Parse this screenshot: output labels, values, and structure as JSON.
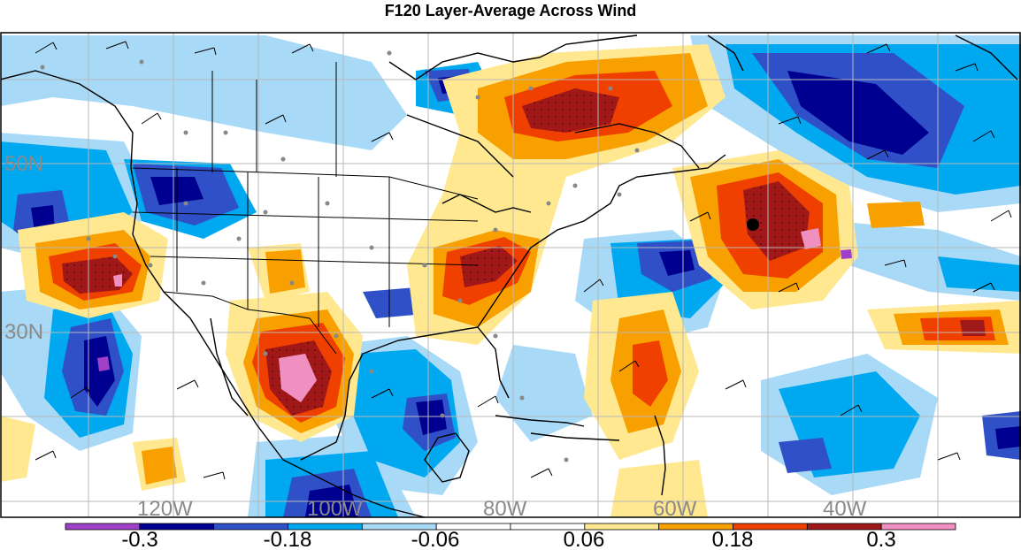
{
  "title": "F120 Layer-Average Across Wind",
  "lat_labels": [
    "50N",
    "30N"
  ],
  "lon_labels": [
    "120W",
    "100W",
    "80W",
    "60W",
    "40W"
  ],
  "colorbar": {
    "colors": [
      "#a040c8",
      "#000090",
      "#3050c8",
      "#00a8f0",
      "#a8daf8",
      "#ffffff",
      "#ffffff",
      "#ffe890",
      "#f8a000",
      "#f04000",
      "#a01818",
      "#f090c0"
    ],
    "tick_labels": [
      "-0.3",
      "-0.18",
      "-0.06",
      "0.06",
      "0.18",
      "0.3"
    ]
  },
  "palette": {
    "deep_negative": "#000090",
    "mid_negative": "#3050c8",
    "light_negative": "#00a8f0",
    "pale_negative": "#a8daf8",
    "pale_positive": "#ffe890",
    "light_positive": "#f8a000",
    "mid_positive": "#f04000",
    "deep_positive": "#a01818",
    "extreme_positive": "#f090c0"
  }
}
